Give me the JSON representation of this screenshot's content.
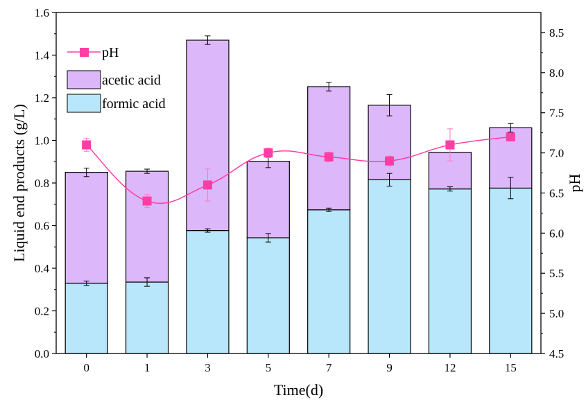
{
  "chart_data": {
    "type": "bar",
    "stacked": true,
    "categories": [
      "0",
      "1",
      "3",
      "5",
      "7",
      "9",
      "12",
      "15"
    ],
    "xlabel": "Time(d)",
    "ylabel": "Liquid end products (g/L)",
    "y2label": "pH",
    "ylim": [
      0,
      1.6
    ],
    "y2lim": [
      4.5,
      8.75
    ],
    "yticks": [
      "0.0",
      "0.2",
      "0.4",
      "0.6",
      "0.8",
      "1.0",
      "1.2",
      "1.4",
      "1.6"
    ],
    "y2ticks": [
      "4.5",
      "5.0",
      "5.5",
      "6.0",
      "6.5",
      "7.0",
      "7.5",
      "8.0",
      "8.5"
    ],
    "series": [
      {
        "name": "formic acid",
        "color": "#b8e6fa",
        "values": [
          0.33,
          0.335,
          0.577,
          0.543,
          0.674,
          0.815,
          0.772,
          0.776
        ],
        "errors": [
          0.01,
          0.02,
          0.008,
          0.02,
          0.008,
          0.03,
          0.01,
          0.05
        ]
      },
      {
        "name": "acetic acid",
        "color": "#dcb7fa",
        "values": [
          0.52,
          0.52,
          0.893,
          0.359,
          0.578,
          0.35,
          0.172,
          0.283
        ],
        "errors": [
          0.02,
          0.01,
          0.02,
          0.03,
          0.02,
          0.05,
          0.0,
          0.02
        ]
      }
    ],
    "line_series": {
      "name": "pH",
      "color": "#ff3ea5",
      "values": [
        7.1,
        6.4,
        6.6,
        7.0,
        6.95,
        6.9,
        7.1,
        7.2
      ],
      "errors": [
        0.08,
        0.08,
        0.2,
        0.06,
        0.06,
        0.06,
        0.2,
        0.05
      ]
    },
    "legend": [
      "pH",
      "acetic acid",
      "formic acid"
    ],
    "legend_position": "top-left"
  }
}
